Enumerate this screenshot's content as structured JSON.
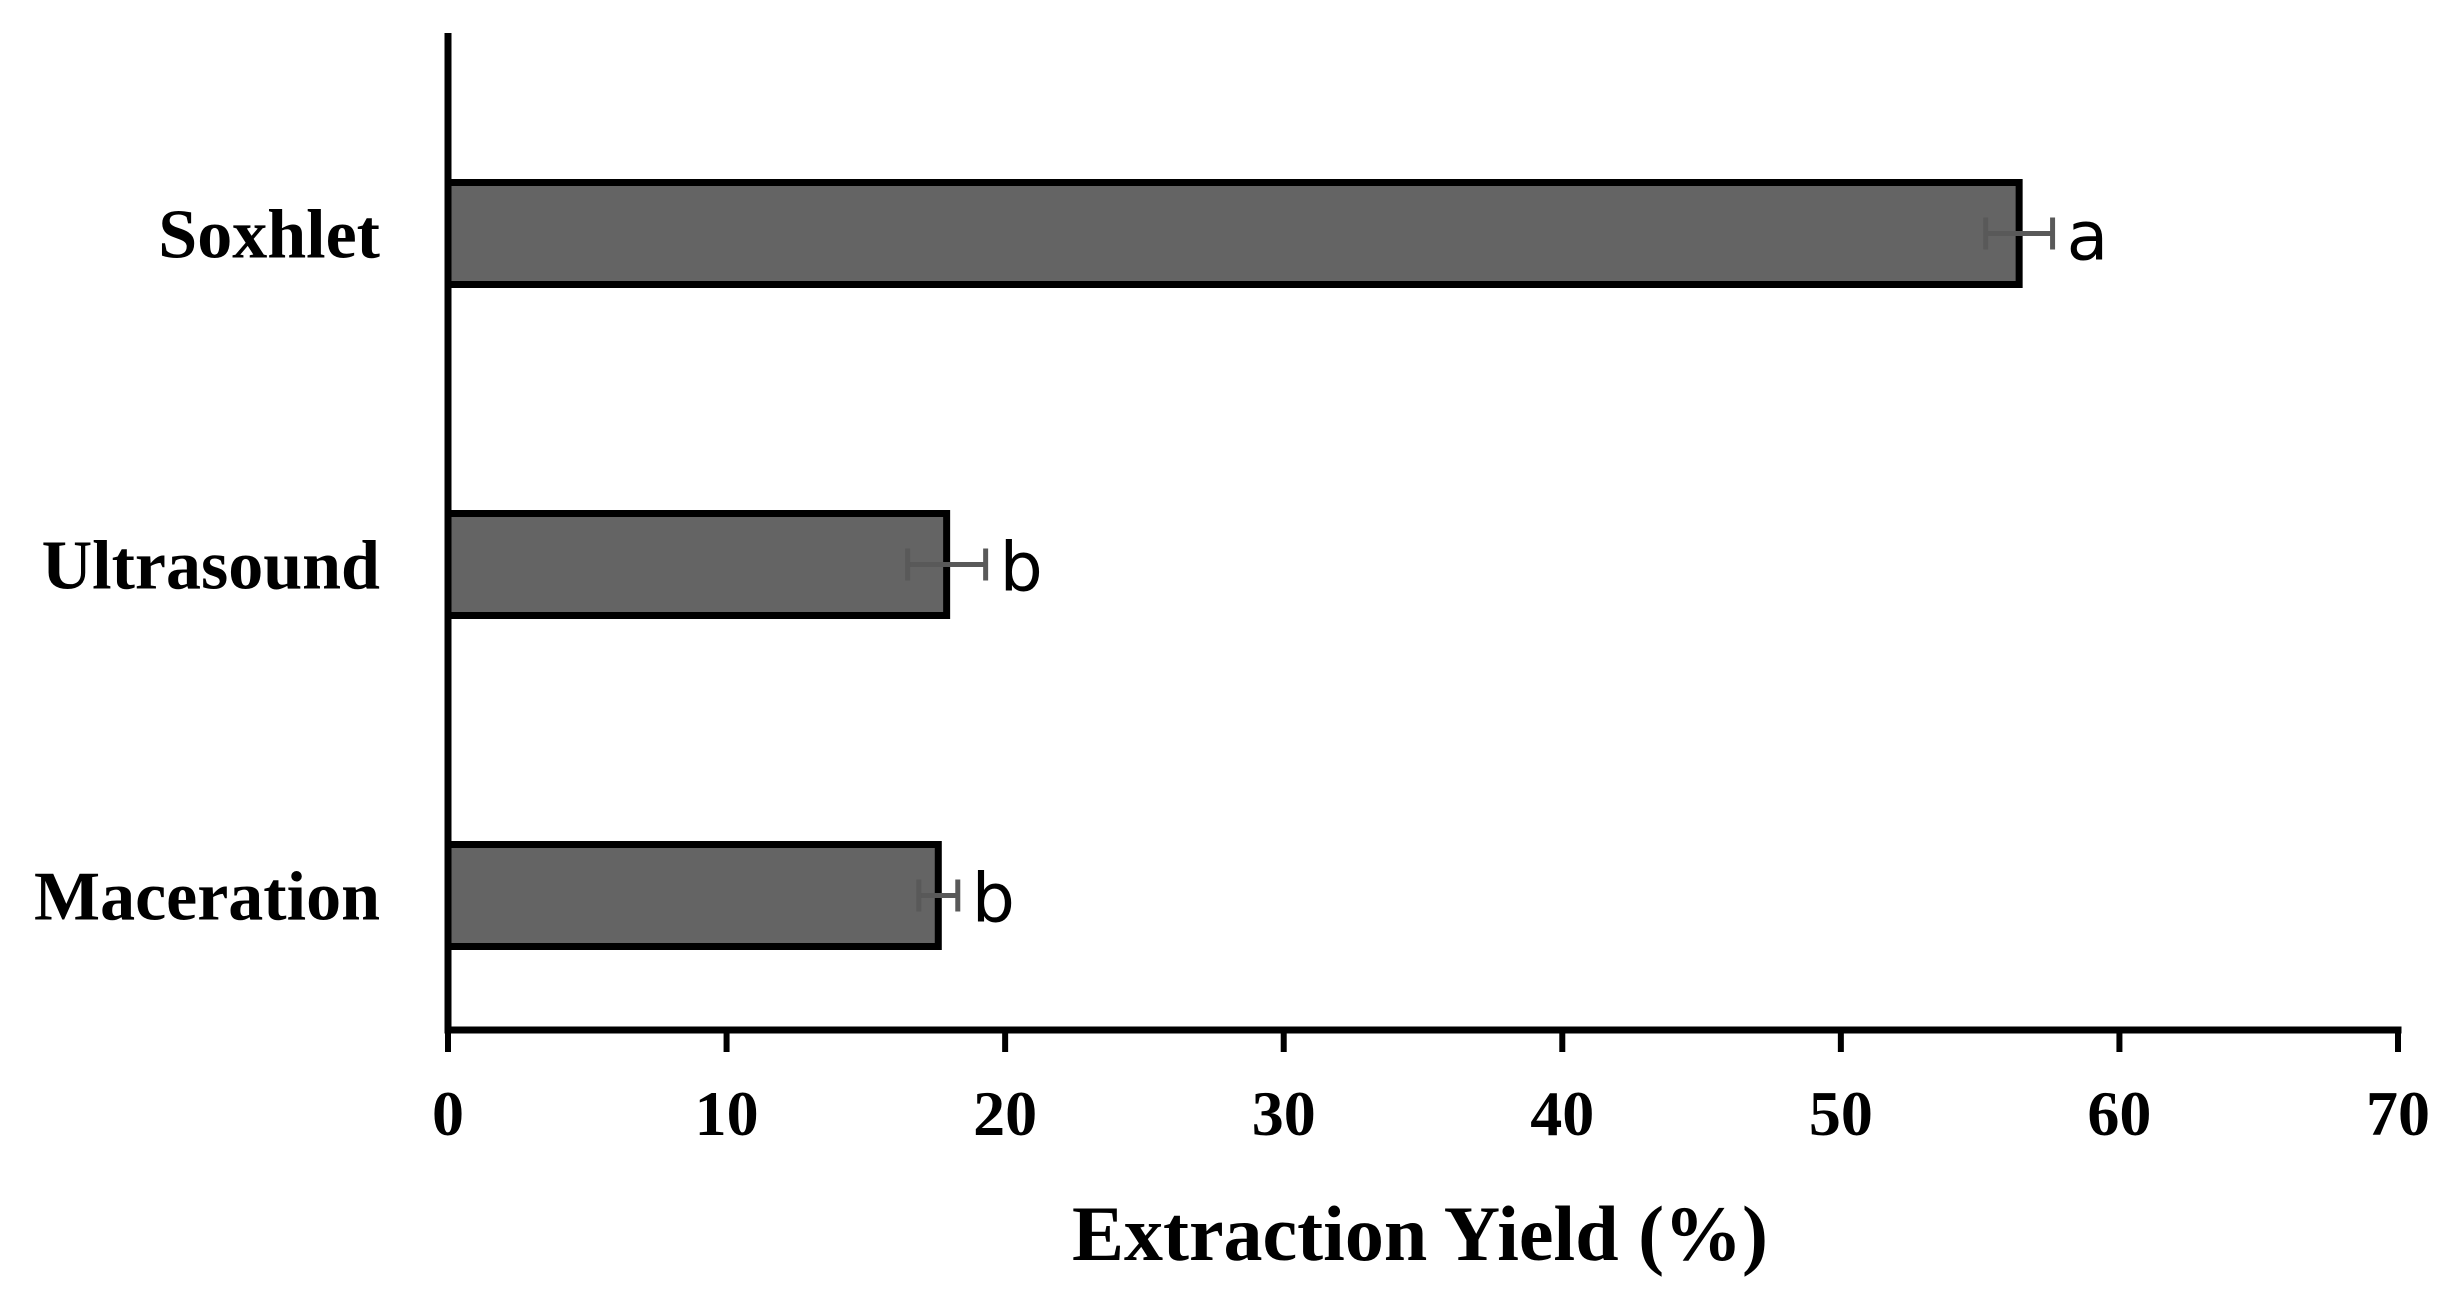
{
  "chart_data": {
    "type": "bar",
    "orientation": "horizontal",
    "categories": [
      "Soxhlet",
      "Ultrasound",
      "Maceration"
    ],
    "values": [
      56.4,
      17.9,
      17.6
    ],
    "errors": [
      1.2,
      1.4,
      0.7
    ],
    "significance_letters": [
      "a",
      "b",
      "b"
    ],
    "xlabel": "Extraction Yield (%)",
    "ylabel": "",
    "title": "",
    "xlim": [
      0,
      70
    ],
    "xticks": [
      0,
      10,
      20,
      30,
      40,
      50,
      60,
      70
    ],
    "grid": false,
    "legend": "none",
    "colors": {
      "bar_fill": "#646464",
      "bar_stroke": "#000000",
      "error_bar": "#595959",
      "axis": "#000000"
    }
  }
}
